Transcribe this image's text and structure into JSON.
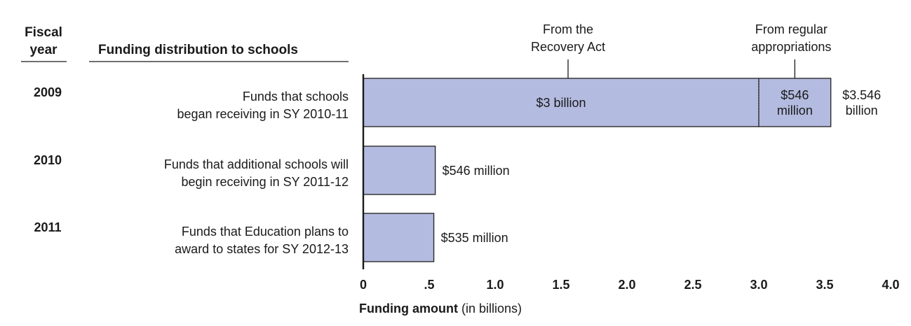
{
  "header": {
    "fiscal_year_line1": "Fiscal",
    "fiscal_year_line2": "year",
    "distribution": "Funding distribution to schools"
  },
  "chart_data": {
    "type": "bar",
    "orientation": "horizontal",
    "stacked": true,
    "rows": [
      {
        "fiscal_year": "2009",
        "description": [
          "Funds that schools",
          "began receiving in SY 2010-11"
        ],
        "segments": [
          {
            "source": "recovery",
            "value": 3.0,
            "label": [
              "$3 billion"
            ]
          },
          {
            "source": "regular",
            "value": 0.546,
            "label": [
              "$546",
              "million"
            ]
          }
        ],
        "total_label": [
          "$3.546",
          "billion"
        ]
      },
      {
        "fiscal_year": "2010",
        "description": [
          "Funds that additional schools will",
          "begin receiving in SY 2011-12"
        ],
        "segments": [
          {
            "source": "regular",
            "value": 0.546,
            "label": []
          }
        ],
        "total_label": [
          "$546 million"
        ]
      },
      {
        "fiscal_year": "2011",
        "description": [
          "Funds that Education plans to",
          "award to states for SY 2012-13"
        ],
        "segments": [
          {
            "source": "regular",
            "value": 0.535,
            "label": []
          }
        ],
        "total_label": [
          "$535 million"
        ]
      }
    ],
    "annotations": {
      "recovery": [
        "From the",
        "Recovery Act"
      ],
      "regular": [
        "From regular",
        "appropriations"
      ]
    },
    "x_ticks": [
      {
        "value": 0,
        "label": "0"
      },
      {
        "value": 0.5,
        "label": ".5"
      },
      {
        "value": 1.0,
        "label": "1.0"
      },
      {
        "value": 1.5,
        "label": "1.5"
      },
      {
        "value": 2.0,
        "label": "2.0"
      },
      {
        "value": 2.5,
        "label": "2.5"
      },
      {
        "value": 3.0,
        "label": "3.0"
      },
      {
        "value": 3.5,
        "label": "3.5"
      },
      {
        "value": 4.0,
        "label": "4.0"
      }
    ],
    "xlim": [
      0,
      4.0
    ],
    "xlabel_bold": "Funding amount",
    "xlabel_rest": " (in billions)",
    "colors": {
      "bar_fill": "#b4bbe0",
      "bar_stroke": "#2b2b2b",
      "divider": "#555555"
    }
  }
}
